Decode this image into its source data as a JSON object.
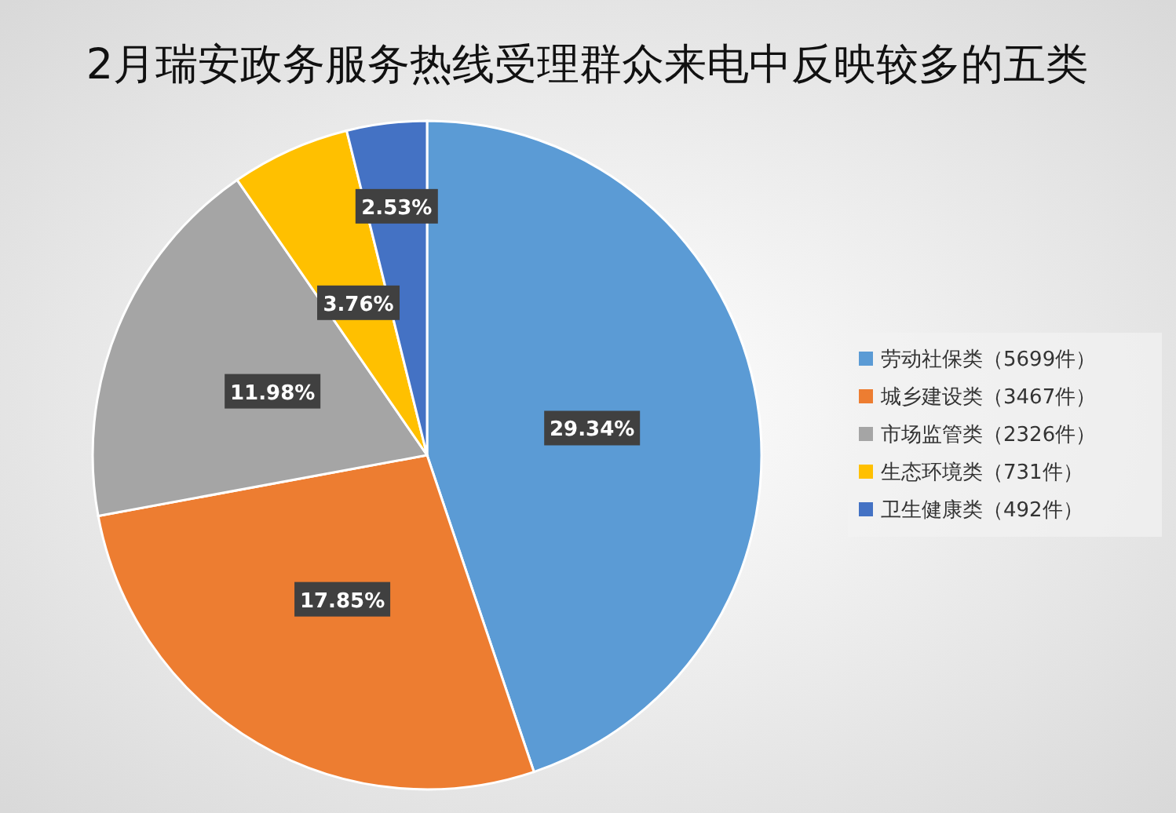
{
  "chart_data": {
    "type": "pie",
    "title": "2月瑞安政务服务热线受理群众来电中反映较多的五类",
    "categories": [
      "劳动社保类（5699件）",
      "城乡建设类（3467件）",
      "市场监管类（2326件）",
      "生态环境类（731件）",
      "卫生健康类（492件）"
    ],
    "values": [
      29.34,
      17.85,
      11.98,
      3.76,
      2.53
    ],
    "value_labels": [
      "29.34%",
      "17.85%",
      "11.98%",
      "3.76%",
      "2.53%"
    ],
    "colors": [
      "#5b9bd5",
      "#ed7d31",
      "#a5a5a5",
      "#ffc000",
      "#4472c4"
    ],
    "legend": "right"
  }
}
